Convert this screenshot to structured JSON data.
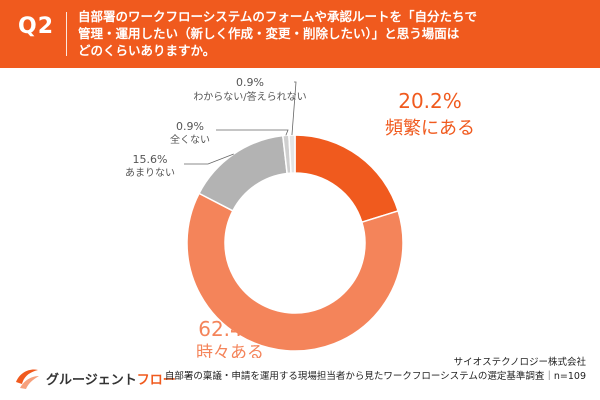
{
  "header": {
    "q_label": "Q2",
    "question_lines": [
      "自部署のワークフローシステムのフォームや承認ルートを「自分たちで",
      "管理・運用したい（新しく作成・変更・削除したい）」と思う場面は",
      "どのくらいありますか。"
    ]
  },
  "chart_data": {
    "type": "pie",
    "donut": true,
    "categories": [
      "頻繁にある",
      "時々ある",
      "あまりない",
      "全くない",
      "わからない/答えられない"
    ],
    "values": [
      20.2,
      62.4,
      15.6,
      0.9,
      0.9
    ],
    "value_labels": [
      "20.2%",
      "62.4%",
      "15.6%",
      "0.9%",
      "0.9%"
    ],
    "colors": [
      "#f05a1e",
      "#f4845a",
      "#b3b3b3",
      "#cfcfcf",
      "#e4e4e4"
    ],
    "start_angle_deg": 0,
    "direction": "clockwise",
    "label_placement": "outside with leader lines"
  },
  "footer": {
    "logo_text_main": "グルージェント",
    "logo_text_accent": "フロー",
    "source_company": "サイオステクノロジー株式会社",
    "source_survey": "自部署の稟議・申請を運用する現場担当者から見たワークフローシステムの選定基準調査｜n=109"
  }
}
